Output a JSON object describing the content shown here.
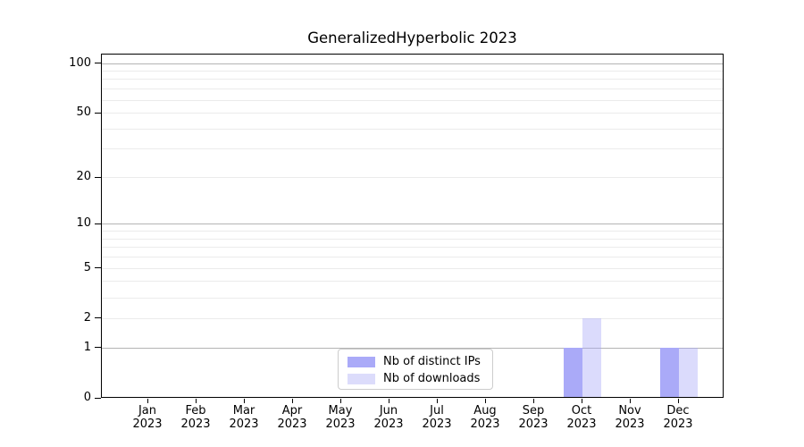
{
  "title": "GeneralizedHyperbolic 2023",
  "chart_data": {
    "type": "bar",
    "title": "GeneralizedHyperbolic 2023",
    "categories": [
      "Jan 2023",
      "Feb 2023",
      "Mar 2023",
      "Apr 2023",
      "May 2023",
      "Jun 2023",
      "Jul 2023",
      "Aug 2023",
      "Sep 2023",
      "Oct 2023",
      "Nov 2023",
      "Dec 2023"
    ],
    "x_tick_month_labels": [
      "Jan",
      "Feb",
      "Mar",
      "Apr",
      "May",
      "Jun",
      "Jul",
      "Aug",
      "Sep",
      "Oct",
      "Nov",
      "Dec"
    ],
    "x_tick_year_label": "2023",
    "series": [
      {
        "name": "Nb of distinct IPs",
        "color": "#aaaaf8",
        "values": [
          0,
          0,
          0,
          0,
          0,
          0,
          0,
          0,
          0,
          1,
          0,
          1
        ]
      },
      {
        "name": "Nb of downloads",
        "color": "#dcdcfb",
        "values": [
          0,
          0,
          0,
          0,
          0,
          0,
          0,
          0,
          0,
          2,
          0,
          1
        ]
      }
    ],
    "yscale": "log10(1+y)",
    "ylim": [
      0,
      114
    ],
    "xlabel": "",
    "ylabel": "",
    "y_tick_values": [
      100,
      50,
      20,
      10,
      5,
      2,
      1,
      0
    ],
    "grid": {
      "dark_line_values": [
        100,
        10,
        1
      ],
      "light_line_values": [
        90,
        80,
        70,
        60,
        50,
        40,
        30,
        20,
        9,
        8,
        7,
        6,
        5,
        4,
        3,
        2
      ],
      "dark_color": "#b4b4b4",
      "light_color": "#ebebeb"
    },
    "legend": {
      "position": "lower center",
      "entries": [
        "Nb of distinct IPs",
        "Nb of downloads"
      ]
    }
  },
  "colors": {
    "distinct_ips_bar": "#aaaaf8",
    "downloads_bar_rgba": "rgba(170,170,248,0.42)",
    "axis": "#000000",
    "legend_border": "#cccccc"
  }
}
